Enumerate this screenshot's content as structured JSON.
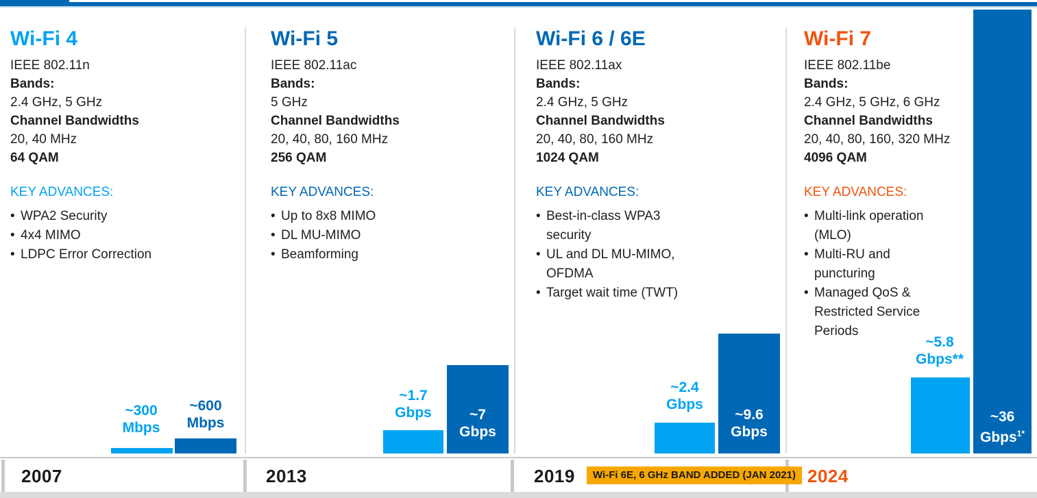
{
  "colors": {
    "light_blue": "#00A3F1",
    "dark_blue": "#0068B5",
    "orange": "#F0540F",
    "badge_background": "#F7A800"
  },
  "columns": [
    {
      "title": "Wi-Fi 4",
      "standard": "IEEE 802.11n",
      "bands_label": "Bands:",
      "bands": "2.4 GHz, 5 GHz",
      "bandwidths_label": "Channel Bandwidths",
      "bandwidths": "20, 40 MHz",
      "modulation": "64 QAM",
      "key_advances_label": "KEY ADVANCES:",
      "advances": [
        "WPA2 Security",
        "4x4 MIMO",
        "LDPC Error Correction"
      ],
      "year": "2007",
      "bar_small": {
        "line1": "~300",
        "line2": "Mbps"
      },
      "bar_large": {
        "line1": "~600",
        "line2": "Mbps"
      }
    },
    {
      "title": "Wi-Fi 5",
      "standard": "IEEE 802.11ac",
      "bands_label": "Bands:",
      "bands": "5 GHz",
      "bandwidths_label": "Channel Bandwidths",
      "bandwidths": "20, 40, 80, 160 MHz",
      "modulation": "256 QAM",
      "key_advances_label": "KEY ADVANCES:",
      "advances": [
        "Up to 8x8 MIMO",
        "DL MU-MIMO",
        "Beamforming"
      ],
      "year": "2013",
      "bar_small": {
        "line1": "~1.7",
        "line2": "Gbps"
      },
      "bar_large": {
        "line1": "~7",
        "line2": "Gbps"
      }
    },
    {
      "title": "Wi-Fi 6 / 6E",
      "standard": "IEEE 802.11ax",
      "bands_label": "Bands:",
      "bands": "2.4 GHz, 5 GHz",
      "bandwidths_label": "Channel Bandwidths",
      "bandwidths": "20, 40, 80, 160 MHz",
      "modulation": "1024 QAM",
      "key_advances_label": "KEY ADVANCES:",
      "advances": [
        "Best-in-class WPA3 security",
        "UL and DL MU-MIMO, OFDMA",
        "Target wait time (TWT)"
      ],
      "year": "2019",
      "bar_small": {
        "line1": "~2.4",
        "line2": "Gbps"
      },
      "bar_large": {
        "line1": "~9.6",
        "line2": "Gbps"
      }
    },
    {
      "title": "Wi-Fi 7",
      "standard": "IEEE 802.11be",
      "bands_label": "Bands:",
      "bands": "2.4 GHz, 5 GHz, 6 GHz",
      "bandwidths_label": "Channel Bandwidths",
      "bandwidths": "20, 40, 80, 160, 320 MHz",
      "modulation": "4096 QAM",
      "key_advances_label": "KEY ADVANCES:",
      "advances": [
        "Multi-link operation (MLO)",
        "Multi-RU and puncturing",
        "Managed QoS & Restricted Service Periods"
      ],
      "year": "2024",
      "bar_small": {
        "line1": "~5.8",
        "line2": "Gbps**"
      },
      "bar_large": {
        "line1": "~36",
        "line2": "Gbps",
        "sup": "1*"
      }
    }
  ],
  "timeline": {
    "badge_text": "Wi-Fi 6E, 6 GHz BAND ADDED (JAN 2021)"
  },
  "chart_data": {
    "type": "bar",
    "categories": [
      "Wi-Fi 4",
      "Wi-Fi 5",
      "Wi-Fi 6 / 6E",
      "Wi-Fi 7"
    ],
    "category_years": [
      "2007",
      "2013",
      "2019",
      "2024"
    ],
    "series": [
      {
        "name": "light_blue_bar",
        "color": "#00A3F1",
        "values_gbps": [
          0.3,
          1.7,
          2.4,
          5.8
        ],
        "labels": [
          "~300 Mbps",
          "~1.7 Gbps",
          "~2.4 Gbps",
          "~5.8 Gbps**"
        ]
      },
      {
        "name": "dark_blue_bar",
        "color": "#0068B5",
        "values_gbps": [
          0.6,
          7,
          9.6,
          36
        ],
        "labels": [
          "~600 Mbps",
          "~7 Gbps",
          "~9.6 Gbps",
          "~36 Gbps1*"
        ]
      }
    ],
    "title": "",
    "xlabel": "",
    "ylabel": "",
    "legend_position": "none",
    "grid": false,
    "axis_ticks": "none; values are printed on/above bars, years on bottom timeline"
  }
}
